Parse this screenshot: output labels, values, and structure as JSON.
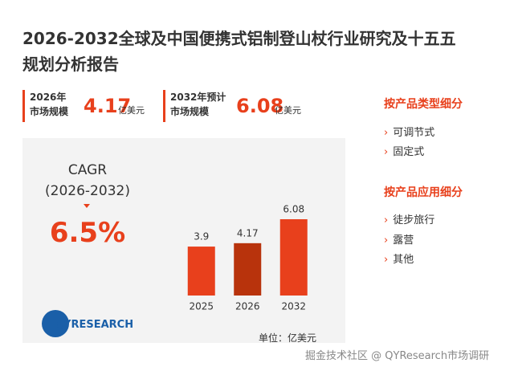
{
  "title_lines": [
    "2026-2032全球及中国便携式铝制登山杖行业研究及十五五",
    "规划分析报告"
  ],
  "stats": [
    {
      "label_lines": [
        "2026年",
        "市场规模"
      ],
      "value": "4.17",
      "unit": "亿美元"
    },
    {
      "label_lines": [
        "2032年预计",
        "市场规模"
      ],
      "value": "6.08",
      "unit": "亿美元"
    }
  ],
  "segments": [
    {
      "title": "按产品类型细分",
      "items": [
        "可调节式",
        "固定式"
      ]
    },
    {
      "title": "按产品应用细分",
      "items": [
        "徒步旅行",
        "露营",
        "其他"
      ]
    }
  ],
  "cagr": {
    "label": "CAGR",
    "period": "(2026-2032)",
    "value": "6.5%"
  },
  "logo": "QYRESEARCH",
  "unit_note": "单位：亿美元",
  "footer": "掘金技术社区 @ QYResearch市场调研",
  "chart_data": {
    "type": "bar",
    "categories": [
      "2025",
      "2026",
      "2032"
    ],
    "values": [
      3.9,
      4.17,
      6.08
    ],
    "colors": [
      "#e8401c",
      "#b8330c",
      "#e8401c"
    ]
  }
}
